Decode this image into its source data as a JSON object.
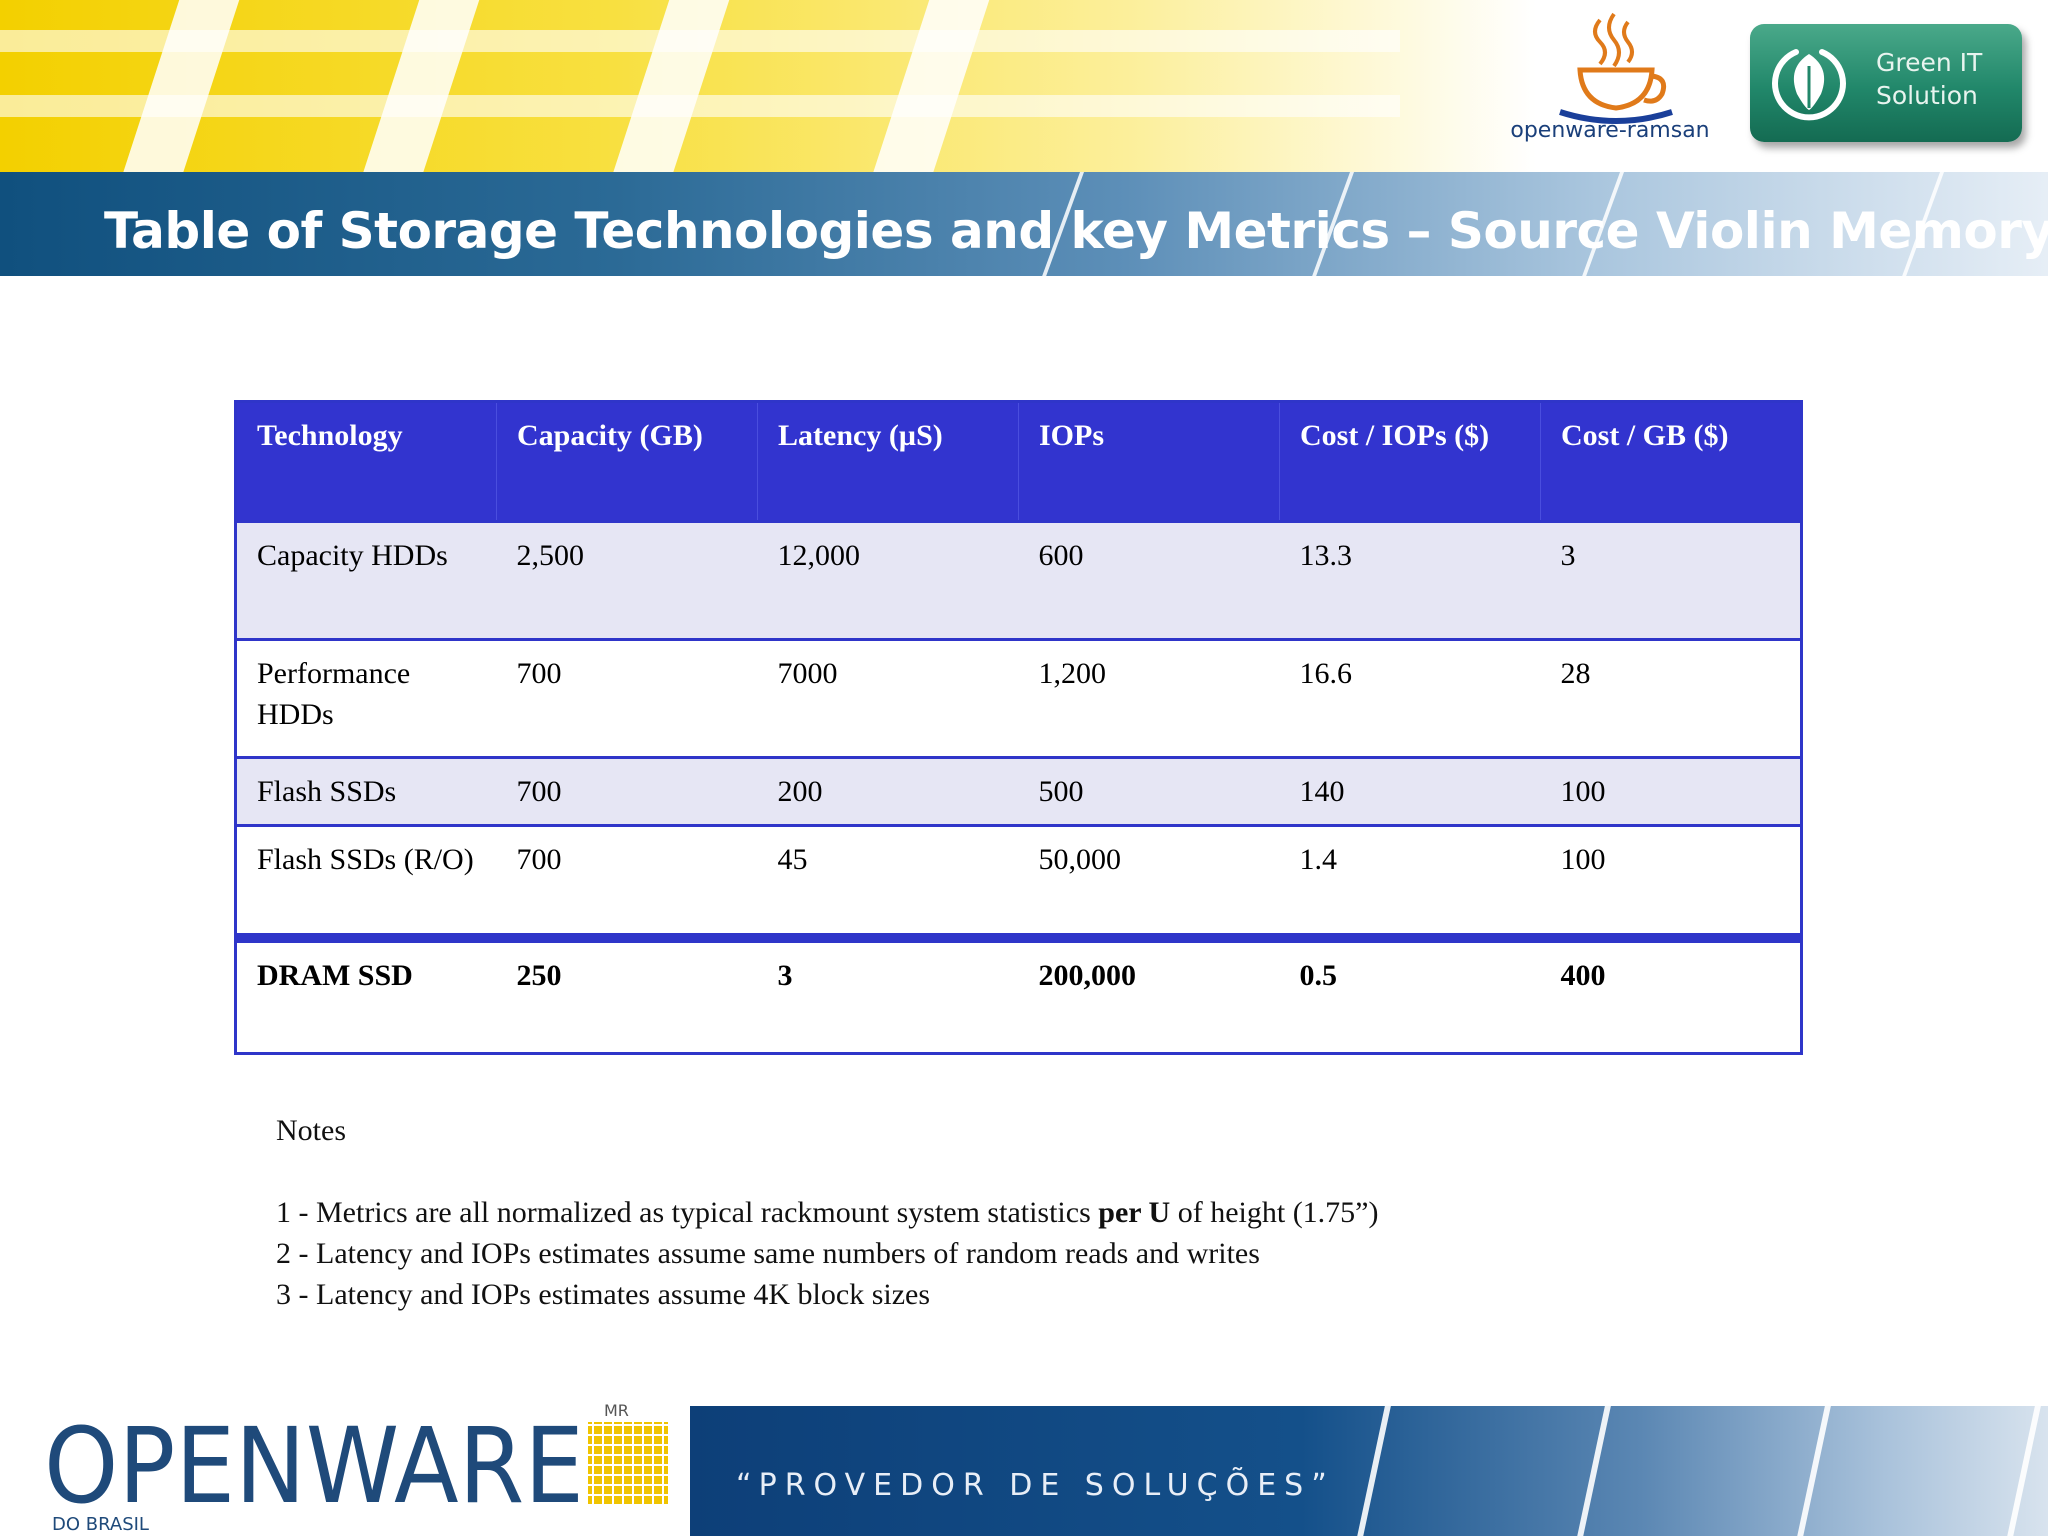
{
  "title": "Table of Storage Technologies and key Metrics – Source Violin Memory",
  "logos": {
    "cup_caption": "openware-ramsan",
    "green_badge": "Green IT Solution",
    "openware_name": "OPENWARE",
    "openware_mark": "MR",
    "openware_sub": "DO BRASIL",
    "slogan": "“PROVEDOR DE SOLUÇÕES”"
  },
  "table": {
    "headers": [
      "Technology",
      "Capacity (GB)",
      "Latency (µS)",
      "IOPs",
      "Cost / IOPs ($)",
      "Cost / GB ($)"
    ],
    "rows": [
      [
        "Capacity HDDs",
        "2,500",
        "12,000",
        "600",
        "13.3",
        "3"
      ],
      [
        "Performance HDDs",
        "700",
        "7000",
        "1,200",
        "16.6",
        "28"
      ],
      [
        "Flash SSDs",
        "700",
        "200",
        "500",
        "140",
        "100"
      ],
      [
        "Flash SSDs (R/O)",
        "700",
        "45",
        "50,000",
        "1.4",
        "100"
      ],
      [
        "DRAM SSD",
        "250",
        "3",
        "200,000",
        "0.5",
        "400"
      ]
    ]
  },
  "notes": {
    "heading": "Notes",
    "note1_pre": "1 - Metrics are all normalized as typical rackmount system statistics ",
    "note1_bold": "per U",
    "note1_post": " of height (1.75”)",
    "note2": "2 - Latency and IOPs estimates assume same numbers of random reads and writes",
    "note3": "3 - Latency and IOPs estimates assume 4K block sizes"
  }
}
